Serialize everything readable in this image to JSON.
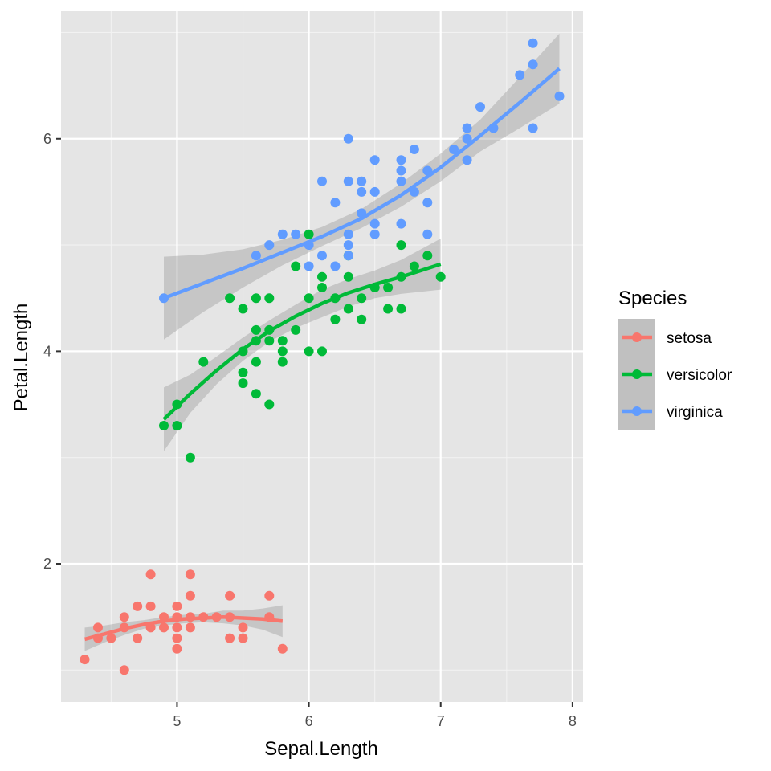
{
  "chart_data": {
    "type": "scatter",
    "title": "",
    "xlabel": "Sepal.Length",
    "ylabel": "Petal.Length",
    "xlim": [
      4.12,
      8.08
    ],
    "ylim": [
      0.7,
      7.2
    ],
    "x_ticks": [
      5,
      6,
      7,
      8
    ],
    "y_ticks": [
      2,
      4,
      6
    ],
    "x_tick_labels": [
      "5",
      "6",
      "7",
      "8"
    ],
    "y_tick_labels": [
      "2",
      "4",
      "6"
    ],
    "grid": true,
    "background": "#e5e5e5",
    "legend": {
      "title": "Species",
      "position": "right"
    },
    "series": [
      {
        "name": "setosa",
        "color": "#f8766d",
        "points": [
          [
            4.3,
            1.1
          ],
          [
            4.4,
            1.3
          ],
          [
            4.4,
            1.4
          ],
          [
            4.5,
            1.3
          ],
          [
            4.6,
            1.0
          ],
          [
            4.6,
            1.4
          ],
          [
            4.6,
            1.5
          ],
          [
            4.7,
            1.3
          ],
          [
            4.7,
            1.6
          ],
          [
            4.8,
            1.4
          ],
          [
            4.8,
            1.6
          ],
          [
            4.8,
            1.9
          ],
          [
            4.9,
            1.4
          ],
          [
            4.9,
            1.5
          ],
          [
            5.0,
            1.2
          ],
          [
            5.0,
            1.3
          ],
          [
            5.0,
            1.4
          ],
          [
            5.0,
            1.5
          ],
          [
            5.0,
            1.6
          ],
          [
            5.1,
            1.4
          ],
          [
            5.1,
            1.5
          ],
          [
            5.1,
            1.7
          ],
          [
            5.1,
            1.9
          ],
          [
            5.2,
            1.5
          ],
          [
            5.3,
            1.5
          ],
          [
            5.4,
            1.3
          ],
          [
            5.4,
            1.5
          ],
          [
            5.4,
            1.7
          ],
          [
            5.5,
            1.3
          ],
          [
            5.5,
            1.4
          ],
          [
            5.7,
            1.5
          ],
          [
            5.7,
            1.7
          ],
          [
            5.8,
            1.2
          ]
        ],
        "smooth": [
          [
            4.3,
            1.29
          ],
          [
            4.45,
            1.34
          ],
          [
            4.6,
            1.39
          ],
          [
            4.75,
            1.43
          ],
          [
            4.9,
            1.46
          ],
          [
            5.05,
            1.48
          ],
          [
            5.2,
            1.49
          ],
          [
            5.35,
            1.5
          ],
          [
            5.5,
            1.49
          ],
          [
            5.65,
            1.48
          ],
          [
            5.8,
            1.46
          ]
        ],
        "ci_lower": [
          1.18,
          1.26,
          1.33,
          1.39,
          1.42,
          1.44,
          1.45,
          1.44,
          1.42,
          1.38,
          1.31
        ],
        "ci_upper": [
          1.4,
          1.42,
          1.45,
          1.47,
          1.5,
          1.52,
          1.53,
          1.56,
          1.56,
          1.58,
          1.61
        ]
      },
      {
        "name": "versicolor",
        "color": "#00ba38",
        "points": [
          [
            4.9,
            3.3
          ],
          [
            5.0,
            3.3
          ],
          [
            5.0,
            3.5
          ],
          [
            5.1,
            3.0
          ],
          [
            5.2,
            3.9
          ],
          [
            5.4,
            4.5
          ],
          [
            5.5,
            3.7
          ],
          [
            5.5,
            3.8
          ],
          [
            5.5,
            4.0
          ],
          [
            5.5,
            4.4
          ],
          [
            5.6,
            3.6
          ],
          [
            5.6,
            3.9
          ],
          [
            5.6,
            4.1
          ],
          [
            5.6,
            4.2
          ],
          [
            5.6,
            4.5
          ],
          [
            5.7,
            3.5
          ],
          [
            5.7,
            4.1
          ],
          [
            5.7,
            4.2
          ],
          [
            5.7,
            4.5
          ],
          [
            5.8,
            3.9
          ],
          [
            5.8,
            4.0
          ],
          [
            5.8,
            4.1
          ],
          [
            5.9,
            4.2
          ],
          [
            5.9,
            4.8
          ],
          [
            6.0,
            4.0
          ],
          [
            6.0,
            4.5
          ],
          [
            6.0,
            5.1
          ],
          [
            6.1,
            4.0
          ],
          [
            6.1,
            4.6
          ],
          [
            6.1,
            4.7
          ],
          [
            6.2,
            4.3
          ],
          [
            6.2,
            4.5
          ],
          [
            6.3,
            4.4
          ],
          [
            6.3,
            4.7
          ],
          [
            6.3,
            4.9
          ],
          [
            6.4,
            4.3
          ],
          [
            6.4,
            4.5
          ],
          [
            6.5,
            4.6
          ],
          [
            6.6,
            4.4
          ],
          [
            6.6,
            4.6
          ],
          [
            6.7,
            4.4
          ],
          [
            6.7,
            4.7
          ],
          [
            6.7,
            5.0
          ],
          [
            6.8,
            4.8
          ],
          [
            6.9,
            4.9
          ],
          [
            7.0,
            4.7
          ]
        ],
        "smooth": [
          [
            4.9,
            3.36
          ],
          [
            5.1,
            3.6
          ],
          [
            5.3,
            3.82
          ],
          [
            5.5,
            4.02
          ],
          [
            5.7,
            4.19
          ],
          [
            5.9,
            4.33
          ],
          [
            6.1,
            4.45
          ],
          [
            6.3,
            4.55
          ],
          [
            6.5,
            4.63
          ],
          [
            6.7,
            4.7
          ],
          [
            7.0,
            4.82
          ]
        ],
        "ci_lower": [
          3.06,
          3.42,
          3.69,
          3.91,
          4.09,
          4.22,
          4.32,
          4.42,
          4.5,
          4.54,
          4.58
        ],
        "ci_upper": [
          3.66,
          3.78,
          3.95,
          4.13,
          4.29,
          4.44,
          4.58,
          4.68,
          4.76,
          4.86,
          5.06
        ]
      },
      {
        "name": "virginica",
        "color": "#619cff",
        "points": [
          [
            4.9,
            4.5
          ],
          [
            5.6,
            4.9
          ],
          [
            5.7,
            5.0
          ],
          [
            5.8,
            5.1
          ],
          [
            5.9,
            5.1
          ],
          [
            6.0,
            4.8
          ],
          [
            6.0,
            5.0
          ],
          [
            6.1,
            4.9
          ],
          [
            6.1,
            5.6
          ],
          [
            6.2,
            4.8
          ],
          [
            6.2,
            5.4
          ],
          [
            6.3,
            4.9
          ],
          [
            6.3,
            5.0
          ],
          [
            6.3,
            5.1
          ],
          [
            6.3,
            5.6
          ],
          [
            6.3,
            6.0
          ],
          [
            6.4,
            5.3
          ],
          [
            6.4,
            5.5
          ],
          [
            6.4,
            5.6
          ],
          [
            6.5,
            5.1
          ],
          [
            6.5,
            5.2
          ],
          [
            6.5,
            5.5
          ],
          [
            6.5,
            5.8
          ],
          [
            6.7,
            5.2
          ],
          [
            6.7,
            5.6
          ],
          [
            6.7,
            5.7
          ],
          [
            6.7,
            5.8
          ],
          [
            6.8,
            5.5
          ],
          [
            6.8,
            5.9
          ],
          [
            6.9,
            5.1
          ],
          [
            6.9,
            5.4
          ],
          [
            6.9,
            5.7
          ],
          [
            7.1,
            5.9
          ],
          [
            7.2,
            5.8
          ],
          [
            7.2,
            6.0
          ],
          [
            7.2,
            6.1
          ],
          [
            7.3,
            6.3
          ],
          [
            7.4,
            6.1
          ],
          [
            7.6,
            6.6
          ],
          [
            7.7,
            6.1
          ],
          [
            7.7,
            6.7
          ],
          [
            7.7,
            6.9
          ],
          [
            7.9,
            6.4
          ]
        ],
        "smooth": [
          [
            4.9,
            4.5
          ],
          [
            5.2,
            4.64
          ],
          [
            5.5,
            4.78
          ],
          [
            5.8,
            4.93
          ],
          [
            6.1,
            5.08
          ],
          [
            6.4,
            5.25
          ],
          [
            6.7,
            5.47
          ],
          [
            7.0,
            5.73
          ],
          [
            7.3,
            6.03
          ],
          [
            7.6,
            6.34
          ],
          [
            7.9,
            6.66
          ]
        ],
        "ci_lower": [
          4.11,
          4.37,
          4.6,
          4.81,
          4.99,
          5.16,
          5.36,
          5.6,
          5.88,
          6.1,
          6.33
        ],
        "ci_upper": [
          4.89,
          4.91,
          4.96,
          5.05,
          5.17,
          5.34,
          5.58,
          5.86,
          6.18,
          6.58,
          6.99
        ]
      }
    ]
  }
}
